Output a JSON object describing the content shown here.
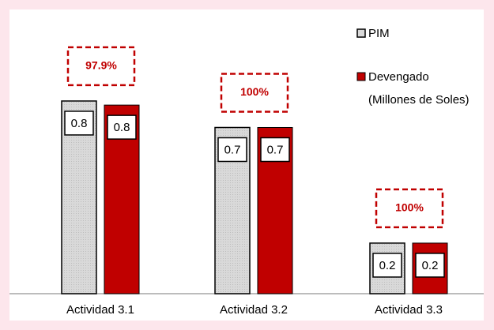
{
  "chart_data": {
    "type": "bar",
    "categories": [
      "Actividad 3.1",
      "Actividad 3.2",
      "Actividad 3.3"
    ],
    "series": [
      {
        "name": "PIM",
        "color": "#d9d9d9",
        "values": [
          0.8,
          0.69,
          0.21
        ],
        "value_labels": [
          "0.8",
          "0.7",
          "0.2"
        ]
      },
      {
        "name": "Devengado",
        "color": "#c00000",
        "values": [
          0.783,
          0.69,
          0.21
        ],
        "value_labels": [
          "0.8",
          "0.7",
          "0.2"
        ]
      }
    ],
    "legend_note": "(Millones de Soles)",
    "annotations": [
      "97.9%",
      "100%",
      "100%"
    ],
    "ylim": [
      0,
      1.18
    ],
    "legend": "upper right"
  }
}
